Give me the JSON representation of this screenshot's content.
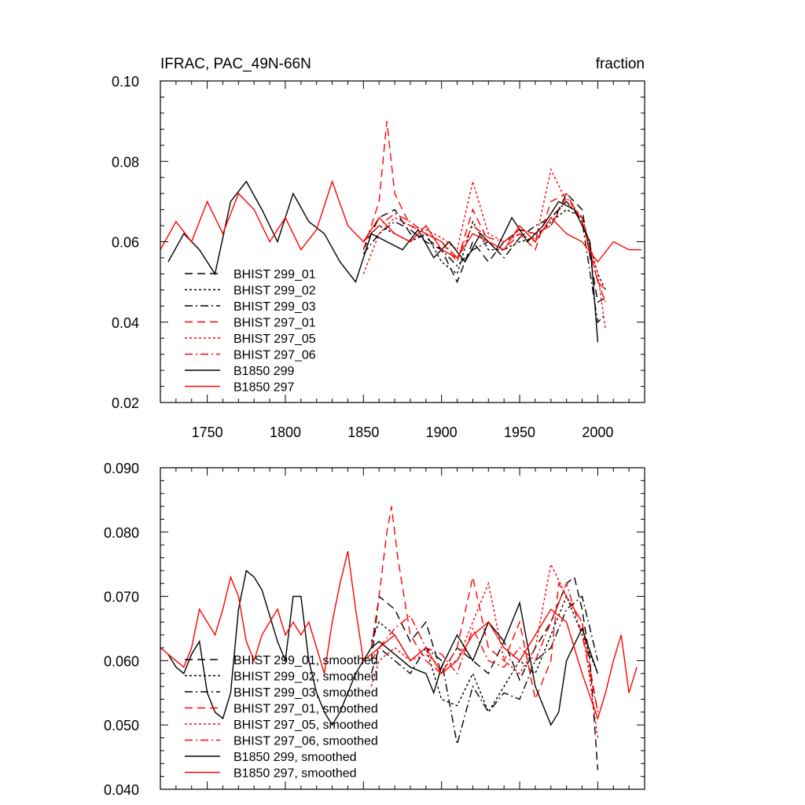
{
  "chart_data": [
    {
      "type": "line",
      "title": "IFRAC, PAC_49N-66N",
      "units": "fraction",
      "xlim": [
        1720,
        2030
      ],
      "ylim": [
        0.02,
        0.1
      ],
      "xticks": [
        1750,
        1800,
        1850,
        1900,
        1950,
        2000
      ],
      "xtick_labels": [
        "1750",
        "1800",
        "1850",
        "1900",
        "1950",
        "2000"
      ],
      "yticks": [
        0.02,
        0.04,
        0.06,
        0.08,
        0.1
      ],
      "ytick_labels": [
        "0.02",
        "0.04",
        "0.06",
        "0.08",
        "0.10"
      ],
      "legend_position": "bottom-left",
      "series": [
        {
          "name": "BHIST 299_01",
          "color": "#000000",
          "dash": "dash",
          "x": [
            1850,
            1860,
            1870,
            1880,
            1890,
            1900,
            1910,
            1920,
            1930,
            1940,
            1950,
            1960,
            1970,
            1980,
            1990,
            2000,
            2005
          ],
          "y": [
            0.058,
            0.066,
            0.068,
            0.062,
            0.061,
            0.058,
            0.05,
            0.06,
            0.055,
            0.06,
            0.063,
            0.062,
            0.064,
            0.072,
            0.068,
            0.045,
            0.046
          ]
        },
        {
          "name": "BHIST 299_02",
          "color": "#000000",
          "dash": "dot",
          "x": [
            1850,
            1860,
            1870,
            1880,
            1890,
            1900,
            1910,
            1920,
            1930,
            1940,
            1950,
            1960,
            1970,
            1980,
            1990,
            2000,
            2005
          ],
          "y": [
            0.06,
            0.064,
            0.062,
            0.06,
            0.062,
            0.055,
            0.052,
            0.065,
            0.058,
            0.058,
            0.06,
            0.061,
            0.065,
            0.068,
            0.066,
            0.052,
            0.048
          ]
        },
        {
          "name": "BHIST 299_03",
          "color": "#000000",
          "dash": "dashdot",
          "x": [
            1850,
            1860,
            1870,
            1880,
            1890,
            1900,
            1910,
            1920,
            1930,
            1940,
            1950,
            1960,
            1970,
            1980,
            1990,
            2000,
            2005
          ],
          "y": [
            0.057,
            0.062,
            0.065,
            0.063,
            0.06,
            0.058,
            0.054,
            0.058,
            0.06,
            0.056,
            0.061,
            0.064,
            0.066,
            0.07,
            0.065,
            0.04,
            0.042
          ]
        },
        {
          "name": "BHIST 297_01",
          "color": "#ff0000",
          "dash": "dash",
          "x": [
            1850,
            1860,
            1865,
            1870,
            1880,
            1890,
            1900,
            1910,
            1920,
            1930,
            1940,
            1950,
            1960,
            1970,
            1980,
            1990,
            2000,
            2005
          ],
          "y": [
            0.058,
            0.07,
            0.09,
            0.072,
            0.064,
            0.062,
            0.06,
            0.055,
            0.068,
            0.06,
            0.058,
            0.062,
            0.058,
            0.07,
            0.072,
            0.065,
            0.05,
            0.048
          ]
        },
        {
          "name": "BHIST 297_05",
          "color": "#ff0000",
          "dash": "dot",
          "x": [
            1850,
            1860,
            1870,
            1880,
            1890,
            1900,
            1910,
            1920,
            1930,
            1940,
            1950,
            1960,
            1970,
            1980,
            1990,
            2000,
            2005
          ],
          "y": [
            0.052,
            0.062,
            0.066,
            0.064,
            0.063,
            0.061,
            0.058,
            0.075,
            0.062,
            0.06,
            0.062,
            0.06,
            0.078,
            0.07,
            0.066,
            0.052,
            0.038
          ]
        },
        {
          "name": "BHIST 297_06",
          "color": "#ff0000",
          "dash": "dashdot",
          "x": [
            1850,
            1860,
            1870,
            1880,
            1890,
            1900,
            1910,
            1920,
            1930,
            1940,
            1950,
            1960,
            1970,
            1980,
            1990,
            2000,
            2005
          ],
          "y": [
            0.06,
            0.064,
            0.067,
            0.065,
            0.062,
            0.06,
            0.056,
            0.064,
            0.061,
            0.06,
            0.063,
            0.062,
            0.064,
            0.071,
            0.066,
            0.05,
            0.045
          ]
        },
        {
          "name": "B1850 299",
          "color": "#000000",
          "dash": "solid",
          "x": [
            1725,
            1735,
            1745,
            1755,
            1765,
            1775,
            1785,
            1795,
            1805,
            1815,
            1825,
            1835,
            1845,
            1855,
            1865,
            1875,
            1885,
            1895,
            1905,
            1915,
            1925,
            1935,
            1945,
            1955,
            1965,
            1975,
            1985,
            1995,
            2000
          ],
          "y": [
            0.055,
            0.062,
            0.058,
            0.052,
            0.07,
            0.075,
            0.068,
            0.06,
            0.072,
            0.065,
            0.062,
            0.055,
            0.05,
            0.062,
            0.06,
            0.058,
            0.063,
            0.056,
            0.06,
            0.055,
            0.062,
            0.058,
            0.066,
            0.06,
            0.064,
            0.07,
            0.068,
            0.06,
            0.035
          ]
        },
        {
          "name": "B1850 297",
          "color": "#ff0000",
          "dash": "solid",
          "x": [
            1720,
            1730,
            1740,
            1750,
            1760,
            1770,
            1780,
            1790,
            1800,
            1810,
            1820,
            1830,
            1840,
            1850,
            1860,
            1870,
            1880,
            1890,
            1900,
            1910,
            1920,
            1930,
            1940,
            1950,
            1960,
            1970,
            1980,
            1990,
            2000,
            2010,
            2020,
            2028
          ],
          "y": [
            0.058,
            0.065,
            0.06,
            0.07,
            0.062,
            0.072,
            0.068,
            0.06,
            0.066,
            0.058,
            0.063,
            0.075,
            0.064,
            0.06,
            0.066,
            0.062,
            0.06,
            0.064,
            0.058,
            0.056,
            0.062,
            0.06,
            0.058,
            0.064,
            0.06,
            0.066,
            0.062,
            0.06,
            0.055,
            0.06,
            0.058,
            0.058
          ]
        }
      ]
    },
    {
      "type": "line",
      "xlim": [
        1720,
        2030
      ],
      "ylim": [
        0.04,
        0.09
      ],
      "xticks": [
        1750,
        1800,
        1850,
        1900,
        1950,
        2000
      ],
      "yticks": [
        0.04,
        0.05,
        0.06,
        0.07,
        0.08,
        0.09
      ],
      "ytick_labels": [
        "0.040",
        "0.050",
        "0.060",
        "0.070",
        "0.080",
        "0.090"
      ],
      "legend_position": "bottom-left",
      "series": [
        {
          "name": "BHIST 299_01, smoothed",
          "color": "#000000",
          "dash": "dash",
          "x": [
            1855,
            1860,
            1870,
            1880,
            1890,
            1900,
            1910,
            1920,
            1930,
            1940,
            1950,
            1960,
            1970,
            1980,
            1985,
            1990,
            1995,
            2000
          ],
          "y": [
            0.06,
            0.07,
            0.068,
            0.063,
            0.066,
            0.058,
            0.062,
            0.06,
            0.058,
            0.063,
            0.057,
            0.062,
            0.066,
            0.072,
            0.073,
            0.068,
            0.06,
            0.043
          ]
        },
        {
          "name": "BHIST 299_02, smoothed",
          "color": "#000000",
          "dash": "dot",
          "x": [
            1855,
            1860,
            1870,
            1880,
            1890,
            1900,
            1910,
            1920,
            1930,
            1940,
            1950,
            1960,
            1970,
            1980,
            1990,
            2000
          ],
          "y": [
            0.063,
            0.066,
            0.064,
            0.06,
            0.062,
            0.054,
            0.053,
            0.058,
            0.052,
            0.056,
            0.06,
            0.058,
            0.064,
            0.07,
            0.064,
            0.058
          ]
        },
        {
          "name": "BHIST 299_03, smoothed",
          "color": "#000000",
          "dash": "dashdot",
          "x": [
            1855,
            1860,
            1870,
            1880,
            1890,
            1900,
            1910,
            1920,
            1930,
            1940,
            1950,
            1960,
            1970,
            1980,
            1990,
            2000
          ],
          "y": [
            0.058,
            0.062,
            0.06,
            0.058,
            0.062,
            0.06,
            0.047,
            0.056,
            0.052,
            0.055,
            0.054,
            0.06,
            0.062,
            0.068,
            0.07,
            0.06
          ]
        },
        {
          "name": "BHIST 297_01, smoothed",
          "color": "#ff0000",
          "dash": "dash",
          "x": [
            1855,
            1860,
            1865,
            1868,
            1872,
            1880,
            1890,
            1900,
            1910,
            1920,
            1930,
            1940,
            1950,
            1960,
            1970,
            1975,
            1980,
            1990,
            2000
          ],
          "y": [
            0.062,
            0.07,
            0.08,
            0.084,
            0.076,
            0.064,
            0.06,
            0.058,
            0.062,
            0.073,
            0.062,
            0.06,
            0.066,
            0.054,
            0.06,
            0.072,
            0.07,
            0.066,
            0.052
          ]
        },
        {
          "name": "BHIST 297_05, smoothed",
          "color": "#ff0000",
          "dash": "dot",
          "x": [
            1855,
            1860,
            1870,
            1880,
            1890,
            1900,
            1910,
            1920,
            1930,
            1940,
            1950,
            1960,
            1970,
            1980,
            1990,
            2000
          ],
          "y": [
            0.056,
            0.06,
            0.062,
            0.06,
            0.061,
            0.059,
            0.06,
            0.066,
            0.072,
            0.06,
            0.058,
            0.062,
            0.075,
            0.07,
            0.066,
            0.048
          ]
        },
        {
          "name": "BHIST 297_06, smoothed",
          "color": "#ff0000",
          "dash": "dashdot",
          "x": [
            1855,
            1860,
            1870,
            1880,
            1890,
            1900,
            1910,
            1920,
            1930,
            1940,
            1950,
            1960,
            1970,
            1980,
            1990,
            2000
          ],
          "y": [
            0.06,
            0.062,
            0.065,
            0.067,
            0.062,
            0.061,
            0.058,
            0.065,
            0.06,
            0.059,
            0.062,
            0.06,
            0.066,
            0.072,
            0.064,
            0.052
          ]
        },
        {
          "name": "B1850 299, smoothed",
          "color": "#000000",
          "dash": "solid",
          "x": [
            1725,
            1730,
            1735,
            1740,
            1745,
            1750,
            1755,
            1760,
            1765,
            1770,
            1775,
            1780,
            1785,
            1790,
            1795,
            1800,
            1805,
            1810,
            1815,
            1820,
            1825,
            1830,
            1835,
            1840,
            1845,
            1850,
            1855,
            1860,
            1870,
            1880,
            1890,
            1895,
            1900,
            1910,
            1920,
            1930,
            1940,
            1950,
            1960,
            1970,
            1975,
            1980,
            1990,
            2000
          ],
          "y": [
            0.061,
            0.059,
            0.058,
            0.061,
            0.063,
            0.055,
            0.052,
            0.051,
            0.055,
            0.068,
            0.074,
            0.073,
            0.071,
            0.067,
            0.063,
            0.06,
            0.07,
            0.07,
            0.06,
            0.055,
            0.052,
            0.05,
            0.052,
            0.055,
            0.058,
            0.06,
            0.062,
            0.063,
            0.061,
            0.059,
            0.058,
            0.055,
            0.059,
            0.064,
            0.06,
            0.066,
            0.063,
            0.069,
            0.056,
            0.05,
            0.052,
            0.06,
            0.065,
            0.058
          ]
        },
        {
          "name": "B1850 297, smoothed",
          "color": "#ff0000",
          "dash": "solid",
          "x": [
            1720,
            1725,
            1730,
            1735,
            1740,
            1745,
            1750,
            1755,
            1760,
            1765,
            1770,
            1775,
            1780,
            1785,
            1790,
            1795,
            1800,
            1805,
            1810,
            1815,
            1820,
            1825,
            1830,
            1835,
            1840,
            1845,
            1850,
            1860,
            1870,
            1880,
            1890,
            1900,
            1910,
            1920,
            1930,
            1940,
            1950,
            1960,
            1970,
            1980,
            1990,
            2000,
            2005,
            2010,
            2015,
            2020,
            2025
          ],
          "y": [
            0.062,
            0.061,
            0.06,
            0.059,
            0.062,
            0.068,
            0.066,
            0.064,
            0.068,
            0.073,
            0.07,
            0.063,
            0.06,
            0.064,
            0.066,
            0.068,
            0.064,
            0.066,
            0.064,
            0.066,
            0.062,
            0.058,
            0.066,
            0.072,
            0.077,
            0.068,
            0.06,
            0.062,
            0.064,
            0.06,
            0.062,
            0.058,
            0.06,
            0.064,
            0.066,
            0.062,
            0.06,
            0.064,
            0.068,
            0.066,
            0.058,
            0.051,
            0.055,
            0.06,
            0.064,
            0.055,
            0.059
          ]
        }
      ]
    }
  ]
}
